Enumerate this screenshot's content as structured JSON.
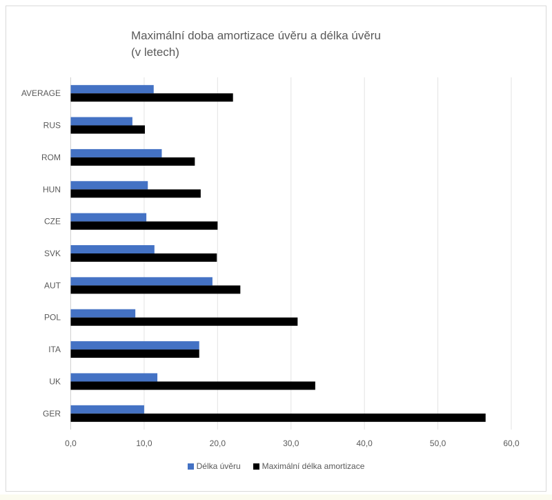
{
  "chart_data": {
    "type": "bar",
    "orientation": "horizontal",
    "title": "Maximální doba amortizace úvěru a délka úvěru",
    "subtitle": "(v letech)",
    "categories": [
      "AVERAGE",
      "RUS",
      "ROM",
      "HUN",
      "CZE",
      "SVK",
      "AUT",
      "POL",
      "ITA",
      "UK",
      "GER"
    ],
    "series": [
      {
        "name": "Délka úvěru",
        "color": "#4472c4",
        "values": [
          11.3,
          8.4,
          12.4,
          10.5,
          10.3,
          11.4,
          19.3,
          8.8,
          17.5,
          11.8,
          10.0
        ]
      },
      {
        "name": "Maximální délka amortizace",
        "color": "#000000",
        "values": [
          22.1,
          10.1,
          16.9,
          17.7,
          20.0,
          19.9,
          23.1,
          30.9,
          17.5,
          33.3,
          56.5
        ]
      }
    ],
    "xlim": [
      0,
      60
    ],
    "xticks": [
      "0,0",
      "10,0",
      "20,0",
      "30,0",
      "40,0",
      "50,0",
      "60,0"
    ],
    "grid": true,
    "legend_position": "bottom"
  }
}
